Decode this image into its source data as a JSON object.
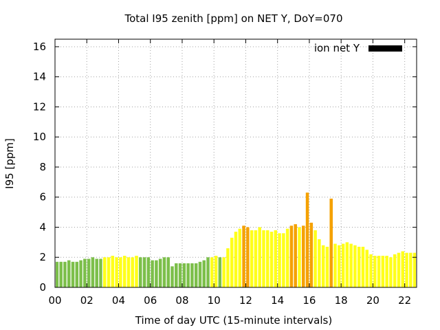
{
  "chart_data": {
    "type": "bar",
    "title": "Total I95 zenith [ppm] on NET Y, DoY=070",
    "xlabel": "Time of day UTC (15-minute intervals)",
    "ylabel": "I95 [ppm]",
    "ylim": [
      0,
      16.5
    ],
    "yticks": [
      0,
      2,
      4,
      6,
      8,
      10,
      12,
      14,
      16
    ],
    "xlim_hours": [
      0,
      22.75
    ],
    "xticks": [
      {
        "hour": 0,
        "label": "00"
      },
      {
        "hour": 2,
        "label": "02"
      },
      {
        "hour": 4,
        "label": "04"
      },
      {
        "hour": 6,
        "label": "06"
      },
      {
        "hour": 8,
        "label": "08"
      },
      {
        "hour": 10,
        "label": "10"
      },
      {
        "hour": 12,
        "label": "12"
      },
      {
        "hour": 14,
        "label": "14"
      },
      {
        "hour": 16,
        "label": "16"
      },
      {
        "hour": 18,
        "label": "18"
      },
      {
        "hour": 20,
        "label": "20"
      },
      {
        "hour": 22,
        "label": "22"
      }
    ],
    "grid": true,
    "legend": {
      "label": "ion net Y",
      "color": "#000000",
      "placement": "top-right"
    },
    "colors": {
      "green": "#7cbf4a",
      "yellow": "#ffff1a",
      "orange": "#f5a100"
    },
    "bar_interval_hours": 0.25,
    "values": [
      1.7,
      1.7,
      1.7,
      1.8,
      1.7,
      1.7,
      1.8,
      1.9,
      1.9,
      2.0,
      1.9,
      1.9,
      2.0,
      2.0,
      2.1,
      2.0,
      2.0,
      2.1,
      2.0,
      2.0,
      2.1,
      2.0,
      2.0,
      2.0,
      1.8,
      1.8,
      1.9,
      2.0,
      2.0,
      1.4,
      1.6,
      1.6,
      1.6,
      1.6,
      1.6,
      1.6,
      1.7,
      1.8,
      2.0,
      2.0,
      2.1,
      2.0,
      2.0,
      2.6,
      3.3,
      3.7,
      3.9,
      4.1,
      4.0,
      3.8,
      3.8,
      4.0,
      3.8,
      3.8,
      3.7,
      3.8,
      3.6,
      3.6,
      3.9,
      4.1,
      4.2,
      4.0,
      4.1,
      6.3,
      4.3,
      3.8,
      3.2,
      2.8,
      2.7,
      5.9,
      2.9,
      2.8,
      2.9,
      3.0,
      2.9,
      2.8,
      2.7,
      2.7,
      2.5,
      2.2,
      2.1,
      2.1,
      2.1,
      2.1,
      2.0,
      2.2,
      2.3,
      2.4,
      2.3,
      2.3,
      2.3,
      2.4
    ],
    "categories": [
      "g",
      "g",
      "g",
      "g",
      "g",
      "g",
      "g",
      "g",
      "g",
      "g",
      "g",
      "g",
      "y",
      "y",
      "y",
      "y",
      "y",
      "y",
      "y",
      "y",
      "y",
      "g",
      "g",
      "g",
      "g",
      "g",
      "g",
      "g",
      "g",
      "g",
      "g",
      "g",
      "g",
      "g",
      "g",
      "g",
      "g",
      "g",
      "g",
      "y",
      "y",
      "g",
      "y",
      "y",
      "y",
      "y",
      "y",
      "o",
      "o",
      "y",
      "y",
      "y",
      "y",
      "y",
      "y",
      "y",
      "y",
      "y",
      "y",
      "o",
      "o",
      "y",
      "o",
      "o",
      "o",
      "y",
      "y",
      "y",
      "y",
      "o",
      "y",
      "y",
      "y",
      "y",
      "y",
      "y",
      "y",
      "y",
      "y",
      "y",
      "y",
      "y",
      "y",
      "y",
      "y",
      "y",
      "y",
      "y",
      "y",
      "y",
      "y",
      "y"
    ]
  }
}
